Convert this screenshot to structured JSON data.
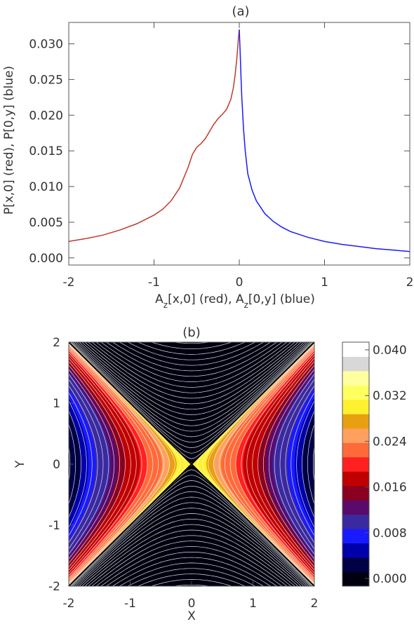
{
  "chart_data": [
    {
      "type": "line",
      "title": "(a)",
      "xlabel": "A_z[x,0] (red), A_z[0,y] (blue)",
      "ylabel": "P[x,0] (red), P[0,y] (blue)",
      "xlim": [
        -2,
        2
      ],
      "ylim": [
        -0.001,
        0.033
      ],
      "xticks": [
        "-2",
        "-1",
        "0",
        "1",
        "2"
      ],
      "yticks": [
        "0.000",
        "0.005",
        "0.010",
        "0.015",
        "0.020",
        "0.025",
        "0.030"
      ],
      "series": [
        {
          "name": "red",
          "color": "#c0392b",
          "x": [
            -2.0,
            -1.8,
            -1.6,
            -1.4,
            -1.2,
            -1.0,
            -0.9,
            -0.8,
            -0.7,
            -0.6,
            -0.55,
            -0.5,
            -0.45,
            -0.4,
            -0.35,
            -0.3,
            -0.25,
            -0.2,
            -0.15,
            -0.1,
            -0.07,
            -0.05,
            -0.03,
            -0.02,
            -0.01,
            0.0
          ],
          "y": [
            0.0023,
            0.0027,
            0.0032,
            0.0039,
            0.0048,
            0.006,
            0.0068,
            0.008,
            0.0098,
            0.0127,
            0.0145,
            0.0155,
            0.016,
            0.0167,
            0.0177,
            0.0187,
            0.0195,
            0.0201,
            0.0208,
            0.0222,
            0.0238,
            0.0255,
            0.0278,
            0.0293,
            0.0308,
            0.032
          ]
        },
        {
          "name": "blue",
          "color": "#1a1aff",
          "x": [
            0.0,
            0.01,
            0.02,
            0.03,
            0.05,
            0.07,
            0.1,
            0.15,
            0.2,
            0.3,
            0.4,
            0.5,
            0.6,
            0.8,
            1.0,
            1.2,
            1.4,
            1.6,
            1.8,
            2.0
          ],
          "y": [
            0.032,
            0.029,
            0.0255,
            0.0225,
            0.018,
            0.015,
            0.0118,
            0.0095,
            0.008,
            0.0062,
            0.0051,
            0.0043,
            0.0037,
            0.0029,
            0.0023,
            0.0019,
            0.0016,
            0.0013,
            0.0011,
            0.0009
          ]
        }
      ]
    },
    {
      "type": "heatmap",
      "title": "(b)",
      "xlabel": "X",
      "ylabel": "Y",
      "xlim": [
        -2,
        2
      ],
      "ylim": [
        -2,
        2
      ],
      "xticks": [
        "-2",
        "-1",
        "0",
        "1",
        "2"
      ],
      "yticks": [
        "-2",
        "-1",
        "0",
        "1",
        "2"
      ],
      "colorbar": {
        "range": [
          0.0,
          0.04
        ],
        "ticks": [
          "0.000",
          "0.008",
          "0.016",
          "0.024",
          "0.032",
          "0.040"
        ],
        "colors": [
          "#000010",
          "#000044",
          "#0000aa",
          "#1a1aff",
          "#3a2aa0",
          "#5a0a6a",
          "#8a0020",
          "#c00000",
          "#ff2020",
          "#ff6a3a",
          "#ffa060",
          "#e8a010",
          "#fff030",
          "#ffff60",
          "#ffffa0",
          "#d8d8d8",
          "#ffffff"
        ]
      },
      "field": "P(x,y) with X-point at origin, separatrices y = ±x"
    }
  ]
}
